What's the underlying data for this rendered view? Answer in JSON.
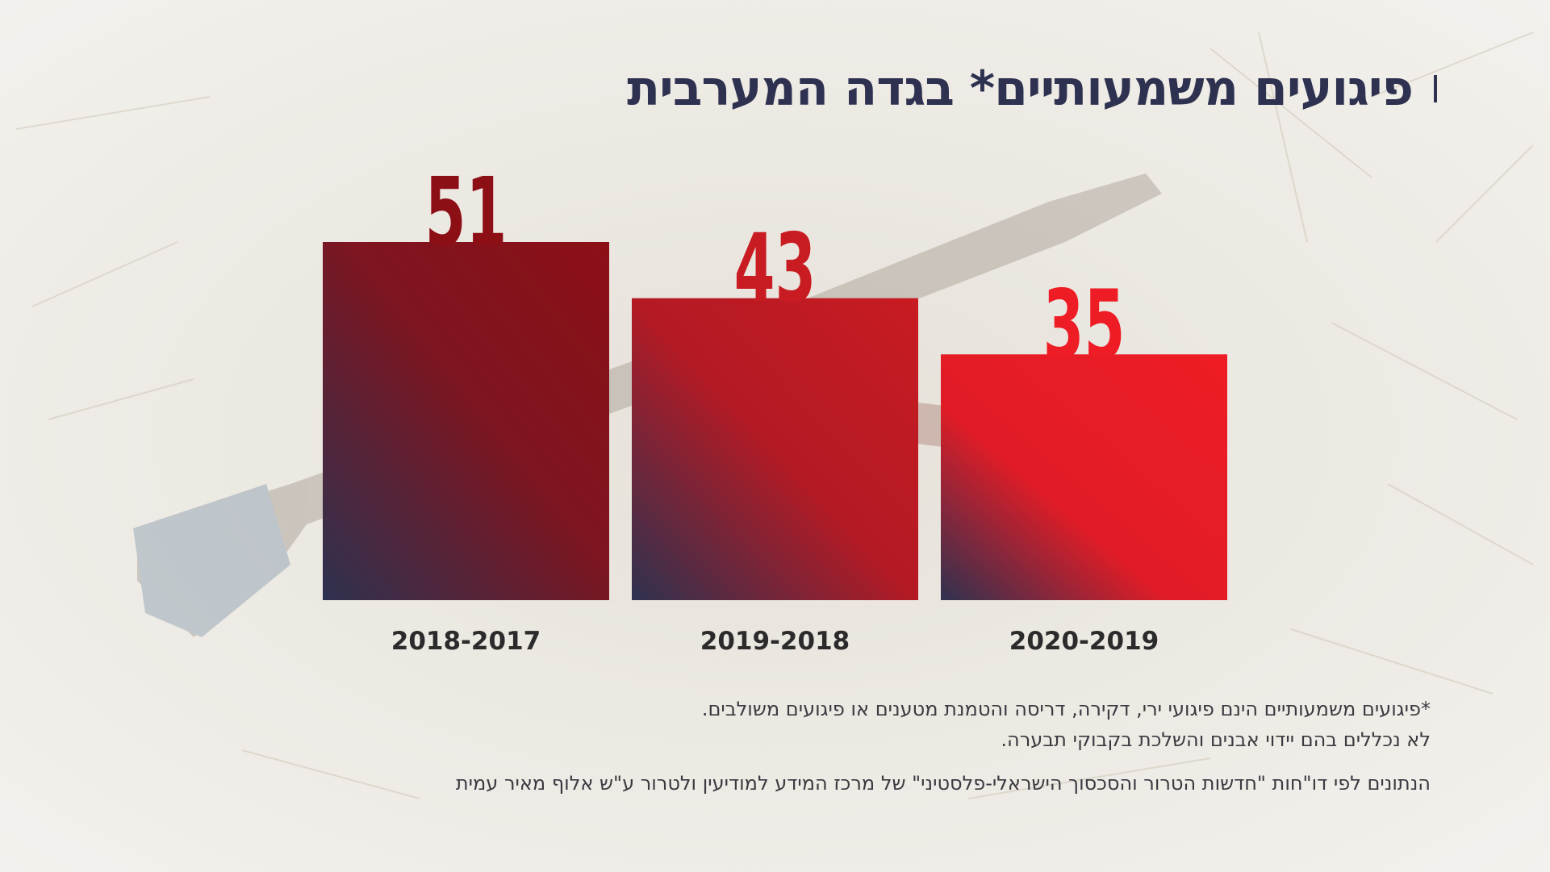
{
  "title": "פיגועים משמעותיים* בגדה המערבית",
  "chart_data": {
    "type": "bar",
    "categories": [
      "2018-2017",
      "2019-2018",
      "2020-2019"
    ],
    "values": [
      51,
      43,
      35
    ],
    "title": "פיגועים משמעותיים* בגדה המערבית",
    "xlabel": "",
    "ylabel": "",
    "ylim": [
      0,
      51
    ],
    "grid": false,
    "legend": "none",
    "colors": {
      "bar_dark_top": "#8c0f16",
      "bar_mid_top": "#c81b22",
      "bar_bright_top": "#ee1c25",
      "bar_bottom": "#2e3250",
      "value_labels": [
        "#8c0f16",
        "#c81b22",
        "#ee1c25"
      ],
      "category_labels": "#2b2b2b"
    }
  },
  "footnotes": {
    "line1": "*פיגועים משמעותיים הינם פיגועי ירי, דקירה, דריסה והטמנת מטענים או פיגועים משולבים.",
    "line2": "לא נכללים בהם יידוי אבנים והשלכת בקבוקי תבערה.",
    "source": "הנתונים לפי דו\"חות \"חדשות הטרור והסכסוך הישראלי-פלסטיני\" של מרכז המידע למודיעין ולטרור ע\"ש אלוף מאיר עמית"
  },
  "colors": {
    "background": "#eeebe6",
    "title": "#2e3250",
    "text": "#3a3a40"
  }
}
